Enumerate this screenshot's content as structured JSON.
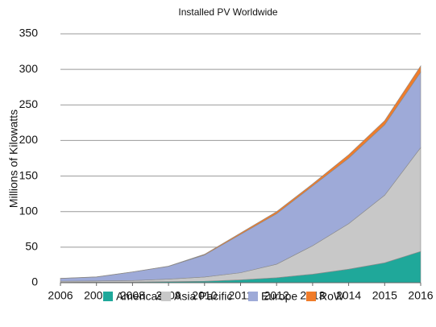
{
  "chart_data": {
    "type": "stacked-area",
    "title": "Installed PV Worldwide",
    "y_label": "Millions of Kilowatts",
    "x": [
      2006,
      2007,
      2008,
      2009,
      2010,
      2011,
      2012,
      2013,
      2014,
      2015,
      2016
    ],
    "xlim": [
      2006,
      2016
    ],
    "xticks": [
      2006,
      2007,
      2008,
      2009,
      2010,
      2011,
      2012,
      2013,
      2014,
      2015,
      2016
    ],
    "ylim": [
      0,
      350
    ],
    "yticks": [
      0,
      50,
      100,
      150,
      200,
      250,
      300,
      350
    ],
    "grid": true,
    "series": [
      {
        "name": "Americas",
        "color": "#1fa89a",
        "values": [
          0.5,
          1,
          1,
          1.5,
          2,
          4,
          7,
          12,
          19,
          28,
          44
        ]
      },
      {
        "name": "Asia Pacific",
        "color": "#c8c8c8",
        "values": [
          1.5,
          1.5,
          2,
          3.5,
          6,
          10,
          19,
          40,
          64,
          95,
          146
        ]
      },
      {
        "name": "Europe",
        "color": "#9eaad8",
        "values": [
          4,
          5.5,
          12,
          18,
          31,
          54,
          71,
          84,
          92,
          99,
          106
        ]
      },
      {
        "name": "RoW",
        "color": "#f07c2a",
        "values": [
          0.2,
          0.3,
          0.3,
          0.3,
          1,
          2,
          3,
          3,
          5,
          6,
          9
        ]
      }
    ]
  }
}
